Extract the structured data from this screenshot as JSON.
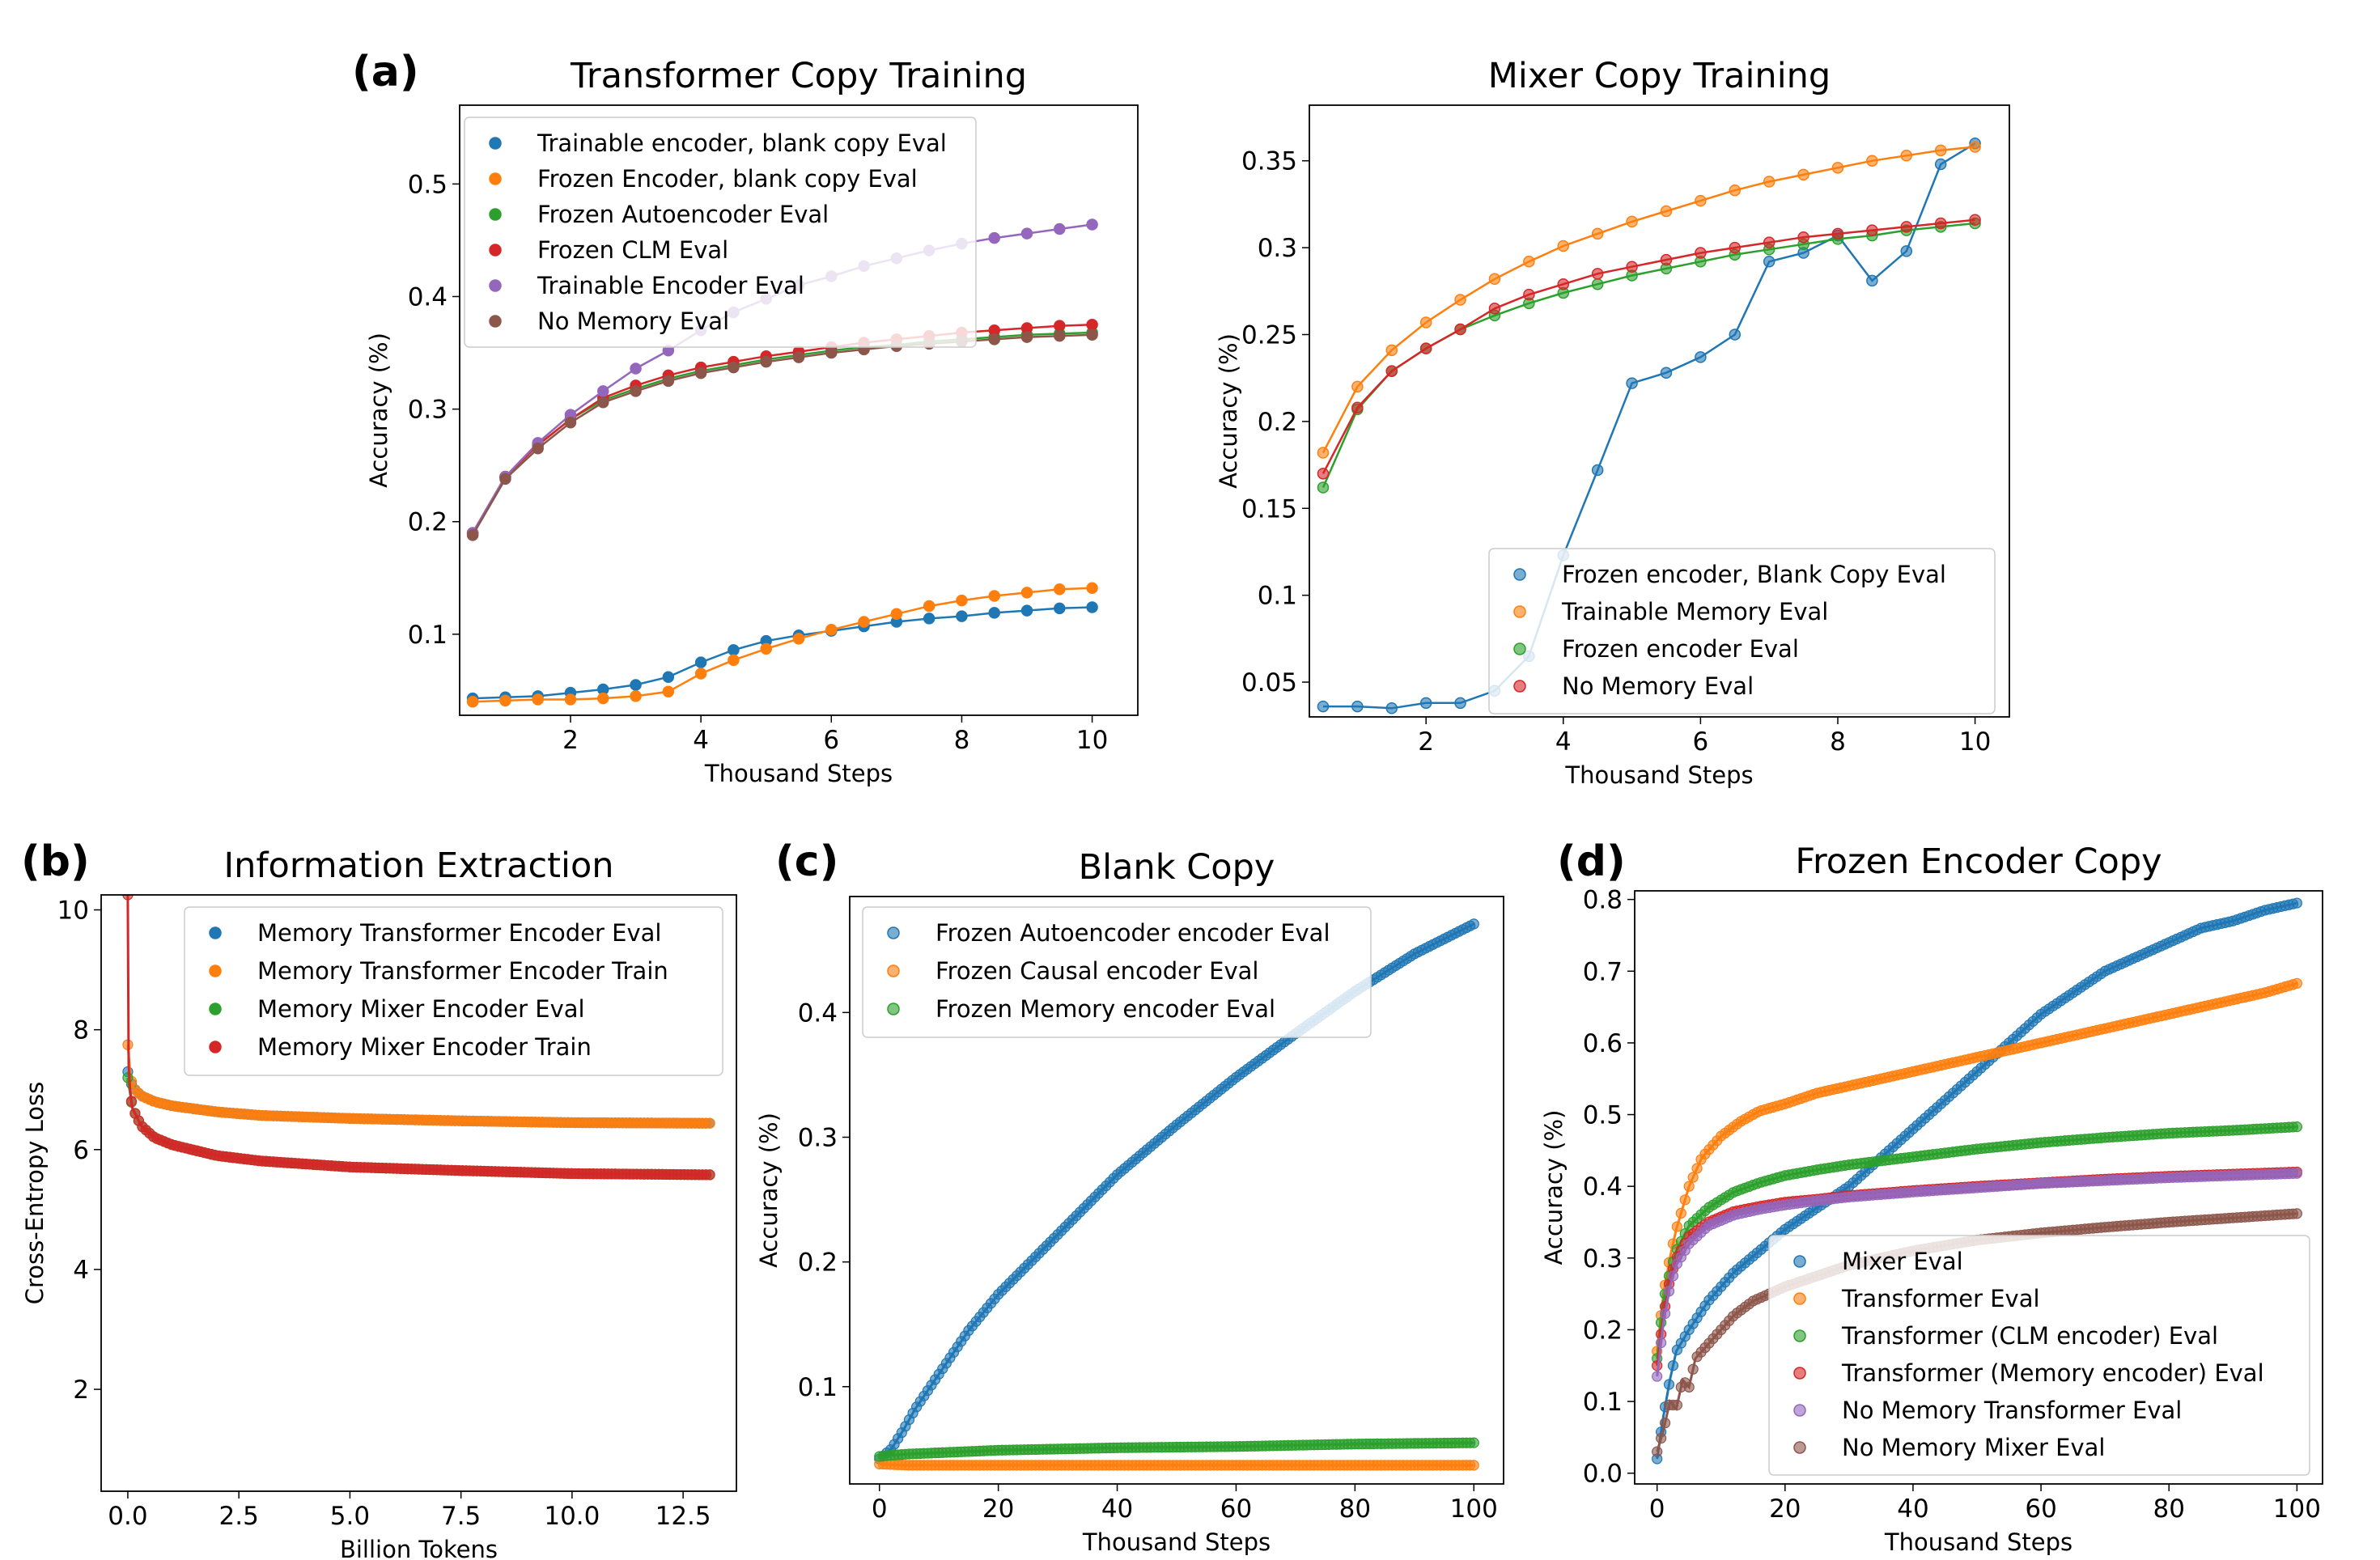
{
  "figure": {
    "panels": [
      {
        "id": "a",
        "label": "(a)"
      },
      {
        "id": "b",
        "label": "(b)"
      },
      {
        "id": "c",
        "label": "(c)"
      },
      {
        "id": "d",
        "label": "(d)"
      }
    ]
  },
  "chart_data": [
    {
      "id": "a1",
      "type": "line",
      "title": "Transformer Copy Training",
      "xlabel": "Thousand Steps",
      "ylabel": "Accuracy (%)",
      "xlim": [
        0.3,
        10.7
      ],
      "ylim": [
        0.028,
        0.57
      ],
      "xticks": [
        2,
        4,
        6,
        8,
        10
      ],
      "yticks": [
        0.1,
        0.2,
        0.3,
        0.4,
        0.5
      ],
      "legend_position": "upper-left",
      "x": [
        0.5,
        1.0,
        1.5,
        2.0,
        2.5,
        3.0,
        3.5,
        4.0,
        4.5,
        5.0,
        5.5,
        6.0,
        6.5,
        7.0,
        7.5,
        8.0,
        8.5,
        9.0,
        9.5,
        10.0
      ],
      "series": [
        {
          "name": "Trainable encoder, blank copy Eval",
          "color": "#1f77b4",
          "values": [
            0.043,
            0.044,
            0.045,
            0.048,
            0.051,
            0.055,
            0.062,
            0.075,
            0.086,
            0.094,
            0.099,
            0.103,
            0.107,
            0.111,
            0.114,
            0.116,
            0.119,
            0.121,
            0.123,
            0.124
          ]
        },
        {
          "name": "Frozen Encoder, blank copy Eval",
          "color": "#ff7f0e",
          "values": [
            0.04,
            0.041,
            0.042,
            0.042,
            0.043,
            0.045,
            0.049,
            0.065,
            0.077,
            0.087,
            0.096,
            0.104,
            0.111,
            0.118,
            0.125,
            0.13,
            0.134,
            0.137,
            0.14,
            0.141
          ]
        },
        {
          "name": "Frozen Autoencoder Eval",
          "color": "#2ca02c",
          "values": [
            0.19,
            0.24,
            0.268,
            0.291,
            0.308,
            0.318,
            0.327,
            0.334,
            0.339,
            0.344,
            0.348,
            0.352,
            0.355,
            0.357,
            0.36,
            0.362,
            0.364,
            0.366,
            0.367,
            0.368
          ]
        },
        {
          "name": "Frozen CLM Eval",
          "color": "#d62728",
          "values": [
            0.19,
            0.24,
            0.268,
            0.291,
            0.31,
            0.321,
            0.33,
            0.337,
            0.342,
            0.347,
            0.351,
            0.355,
            0.359,
            0.362,
            0.365,
            0.368,
            0.37,
            0.372,
            0.374,
            0.375
          ]
        },
        {
          "name": "Trainable Encoder Eval",
          "color": "#9467bd",
          "values": [
            0.19,
            0.24,
            0.27,
            0.295,
            0.316,
            0.336,
            0.352,
            0.37,
            0.386,
            0.398,
            0.41,
            0.418,
            0.427,
            0.434,
            0.441,
            0.447,
            0.452,
            0.456,
            0.46,
            0.464
          ]
        },
        {
          "name": "No Memory Eval",
          "color": "#8c564b",
          "values": [
            0.188,
            0.238,
            0.265,
            0.288,
            0.306,
            0.316,
            0.325,
            0.332,
            0.337,
            0.342,
            0.346,
            0.35,
            0.353,
            0.356,
            0.358,
            0.36,
            0.362,
            0.364,
            0.365,
            0.366
          ]
        }
      ]
    },
    {
      "id": "a2",
      "type": "line",
      "title": "Mixer Copy Training",
      "xlabel": "Thousand Steps",
      "ylabel": "Accuracy (%)",
      "xlim": [
        0.3,
        10.5
      ],
      "ylim": [
        0.03,
        0.382
      ],
      "xticks": [
        2,
        4,
        6,
        8,
        10
      ],
      "yticks": [
        0.05,
        0.1,
        0.15,
        0.2,
        0.25,
        0.3,
        0.35
      ],
      "legend_position": "lower-right",
      "x": [
        0.5,
        1.0,
        1.5,
        2.0,
        2.5,
        3.0,
        3.5,
        4.0,
        4.5,
        5.0,
        5.5,
        6.0,
        6.5,
        7.0,
        7.5,
        8.0,
        8.5,
        9.0,
        9.5,
        10.0
      ],
      "series": [
        {
          "name": "Frozen encoder, Blank Copy Eval",
          "color": "#1f77b4",
          "values": [
            0.036,
            0.036,
            0.035,
            0.038,
            0.038,
            0.045,
            0.065,
            0.123,
            0.172,
            0.222,
            0.228,
            0.237,
            0.25,
            0.292,
            0.297,
            0.307,
            0.281,
            0.298,
            0.348,
            0.36
          ]
        },
        {
          "name": "Trainable Memory Eval",
          "color": "#ff7f0e",
          "values": [
            0.182,
            0.22,
            0.241,
            0.257,
            0.27,
            0.282,
            0.292,
            0.301,
            0.308,
            0.315,
            0.321,
            0.327,
            0.333,
            0.338,
            0.342,
            0.346,
            0.35,
            0.353,
            0.356,
            0.358
          ]
        },
        {
          "name": "Frozen encoder Eval",
          "color": "#2ca02c",
          "values": [
            0.162,
            0.207,
            0.229,
            0.242,
            0.253,
            0.261,
            0.268,
            0.274,
            0.279,
            0.284,
            0.288,
            0.292,
            0.296,
            0.299,
            0.302,
            0.305,
            0.307,
            0.31,
            0.312,
            0.314
          ]
        },
        {
          "name": "No Memory Eval",
          "color": "#d62728",
          "values": [
            0.17,
            0.208,
            0.229,
            0.242,
            0.253,
            0.265,
            0.273,
            0.279,
            0.285,
            0.289,
            0.293,
            0.297,
            0.3,
            0.303,
            0.306,
            0.308,
            0.31,
            0.312,
            0.314,
            0.316
          ]
        }
      ]
    },
    {
      "id": "b",
      "type": "line",
      "title": "Information Extraction",
      "xlabel": "Billion Tokens",
      "ylabel": "Cross-Entropy Loss",
      "xlim": [
        -0.6,
        13.7
      ],
      "ylim": [
        0.3,
        10.25
      ],
      "xticks": [
        0.0,
        2.5,
        5.0,
        7.5,
        10.0,
        12.5
      ],
      "xtick_labels": [
        "0.0",
        "2.5",
        "5.0",
        "7.5",
        "10.0",
        "12.5"
      ],
      "yticks": [
        2,
        4,
        6,
        8,
        10
      ],
      "legend_position": "upper-right",
      "series": [
        {
          "name": "Memory Transformer Encoder Eval",
          "color": "#1f77b4",
          "x": [
            0.0,
            0.1,
            0.3,
            0.6,
            1.0,
            2.0,
            3.0,
            5.0,
            7.5,
            10.0,
            13.1
          ],
          "values": [
            7.3,
            7.05,
            6.9,
            6.8,
            6.73,
            6.63,
            6.57,
            6.52,
            6.48,
            6.45,
            6.44
          ]
        },
        {
          "name": "Memory Transformer Encoder Train",
          "color": "#ff7f0e",
          "x": [
            0.0,
            0.05,
            0.1,
            0.3,
            0.6,
            1.0,
            2.0,
            3.0,
            5.0,
            7.5,
            10.0,
            13.1
          ],
          "values": [
            7.75,
            7.3,
            7.05,
            6.9,
            6.8,
            6.73,
            6.63,
            6.57,
            6.52,
            6.48,
            6.45,
            6.44
          ]
        },
        {
          "name": "Memory Mixer Encoder Eval",
          "color": "#2ca02c",
          "x": [
            0.0,
            0.1,
            0.3,
            0.6,
            1.0,
            2.0,
            3.0,
            5.0,
            7.5,
            10.0,
            13.1
          ],
          "values": [
            7.2,
            6.7,
            6.4,
            6.2,
            6.08,
            5.9,
            5.81,
            5.71,
            5.65,
            5.6,
            5.58
          ]
        },
        {
          "name": "Memory Mixer Encoder Train",
          "color": "#d62728",
          "x": [
            0.0,
            0.02,
            0.05,
            0.1,
            0.3,
            0.6,
            1.0,
            2.0,
            3.0,
            5.0,
            7.5,
            10.0,
            13.1
          ],
          "values": [
            10.25,
            7.4,
            7.0,
            6.7,
            6.4,
            6.2,
            6.08,
            5.9,
            5.81,
            5.71,
            5.65,
            5.6,
            5.58
          ]
        }
      ]
    },
    {
      "id": "c",
      "type": "line",
      "title": "Blank Copy",
      "xlabel": "Thousand Steps",
      "ylabel": "Accuracy (%)",
      "xlim": [
        -5,
        105
      ],
      "ylim": [
        0.022,
        0.493
      ],
      "xticks": [
        0,
        20,
        40,
        60,
        80,
        100
      ],
      "yticks": [
        0.1,
        0.2,
        0.3,
        0.4
      ],
      "legend_position": "upper-left",
      "series": [
        {
          "name": "Frozen Autoencoder encoder Eval",
          "color": "#1f77b4",
          "x": [
            0,
            2,
            4,
            6,
            10,
            15,
            20,
            30,
            40,
            50,
            60,
            70,
            80,
            90,
            100
          ],
          "values": [
            0.042,
            0.05,
            0.065,
            0.082,
            0.11,
            0.145,
            0.174,
            0.222,
            0.27,
            0.31,
            0.348,
            0.383,
            0.417,
            0.447,
            0.471
          ]
        },
        {
          "name": "Frozen Causal encoder Eval",
          "color": "#ff7f0e",
          "x": [
            0,
            5,
            20,
            50,
            80,
            100
          ],
          "values": [
            0.038,
            0.037,
            0.037,
            0.037,
            0.037,
            0.037
          ]
        },
        {
          "name": "Frozen Memory encoder Eval",
          "color": "#2ca02c",
          "x": [
            0,
            2,
            5,
            10,
            20,
            40,
            60,
            80,
            100
          ],
          "values": [
            0.044,
            0.045,
            0.046,
            0.047,
            0.049,
            0.051,
            0.052,
            0.054,
            0.055
          ]
        }
      ]
    },
    {
      "id": "d",
      "type": "line",
      "title": "Frozen Encoder Copy",
      "xlabel": "Thousand Steps",
      "ylabel": "Accuracy (%)",
      "xlim": [
        -3.5,
        104
      ],
      "ylim": [
        -0.015,
        0.812
      ],
      "xticks": [
        0,
        20,
        40,
        60,
        80,
        100
      ],
      "yticks": [
        0.0,
        0.1,
        0.2,
        0.3,
        0.4,
        0.5,
        0.6,
        0.7,
        0.8
      ],
      "ytick_labels": [
        "0.0",
        "0.1",
        "0.2",
        "0.3",
        "0.4",
        "0.5",
        "0.6",
        "0.7",
        "0.8"
      ],
      "legend_position": "lower-right",
      "series": [
        {
          "name": "Mixer Eval",
          "color": "#1f77b4",
          "x": [
            0,
            1,
            2,
            3,
            5,
            8,
            12,
            16,
            20,
            25,
            30,
            35,
            40,
            45,
            50,
            55,
            60,
            65,
            70,
            75,
            80,
            85,
            90,
            95,
            100
          ],
          "values": [
            0.02,
            0.08,
            0.13,
            0.17,
            0.2,
            0.24,
            0.28,
            0.31,
            0.34,
            0.37,
            0.4,
            0.44,
            0.48,
            0.52,
            0.56,
            0.6,
            0.64,
            0.67,
            0.7,
            0.72,
            0.74,
            0.76,
            0.77,
            0.785,
            0.795
          ]
        },
        {
          "name": "Transformer Eval",
          "color": "#ff7f0e",
          "x": [
            0,
            1,
            2,
            3,
            4,
            5,
            7,
            10,
            13,
            16,
            20,
            25,
            30,
            35,
            40,
            45,
            50,
            55,
            60,
            65,
            70,
            75,
            80,
            85,
            90,
            95,
            100
          ],
          "values": [
            0.17,
            0.25,
            0.3,
            0.34,
            0.37,
            0.4,
            0.44,
            0.47,
            0.49,
            0.505,
            0.515,
            0.53,
            0.54,
            0.55,
            0.56,
            0.57,
            0.58,
            0.59,
            0.6,
            0.61,
            0.62,
            0.63,
            0.64,
            0.65,
            0.66,
            0.67,
            0.683
          ]
        },
        {
          "name": "Transformer (CLM encoder) Eval",
          "color": "#2ca02c",
          "x": [
            0,
            1,
            2,
            3,
            5,
            8,
            12,
            16,
            20,
            25,
            30,
            40,
            50,
            60,
            70,
            80,
            90,
            100
          ],
          "values": [
            0.16,
            0.24,
            0.28,
            0.31,
            0.345,
            0.37,
            0.392,
            0.405,
            0.415,
            0.423,
            0.43,
            0.441,
            0.452,
            0.461,
            0.468,
            0.474,
            0.478,
            0.483
          ]
        },
        {
          "name": "Transformer (Memory encoder) Eval",
          "color": "#d62728",
          "x": [
            0,
            1,
            2,
            3,
            5,
            8,
            12,
            16,
            20,
            25,
            30,
            40,
            50,
            60,
            70,
            80,
            90,
            100
          ],
          "values": [
            0.15,
            0.22,
            0.27,
            0.3,
            0.33,
            0.35,
            0.365,
            0.372,
            0.378,
            0.382,
            0.387,
            0.394,
            0.4,
            0.405,
            0.41,
            0.414,
            0.417,
            0.42
          ]
        },
        {
          "name": "No Memory Transformer Eval",
          "color": "#9467bd",
          "x": [
            0,
            1,
            2,
            3,
            5,
            8,
            12,
            16,
            20,
            25,
            30,
            40,
            50,
            60,
            70,
            80,
            90,
            100
          ],
          "values": [
            0.135,
            0.21,
            0.26,
            0.29,
            0.32,
            0.345,
            0.36,
            0.368,
            0.374,
            0.38,
            0.385,
            0.392,
            0.398,
            0.404,
            0.408,
            0.412,
            0.415,
            0.418
          ]
        },
        {
          "name": "No Memory Mixer Eval",
          "color": "#8c564b",
          "x": [
            0,
            1,
            2,
            3,
            4,
            5,
            6,
            8,
            10,
            12,
            15,
            20,
            25,
            30,
            40,
            50,
            60,
            70,
            80,
            90,
            100
          ],
          "values": [
            0.03,
            0.06,
            0.1,
            0.09,
            0.13,
            0.12,
            0.16,
            0.18,
            0.2,
            0.22,
            0.24,
            0.26,
            0.275,
            0.29,
            0.31,
            0.325,
            0.335,
            0.343,
            0.35,
            0.356,
            0.362
          ]
        }
      ]
    }
  ]
}
